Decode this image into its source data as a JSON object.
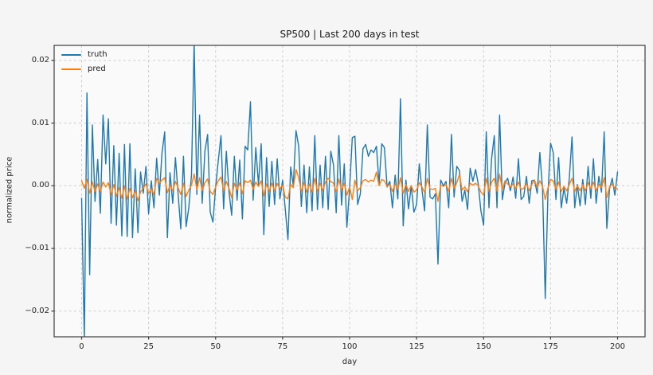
{
  "chart_data": {
    "type": "line",
    "title": "SP500 | Last 200 days in test",
    "xlabel": "day",
    "ylabel": "normalized price",
    "x_start": 0,
    "x_step": 1,
    "xlim": [
      -10.25,
      210.25
    ],
    "ylim": [
      -0.0241,
      0.0224
    ],
    "xticks": {
      "values": [
        0,
        25,
        50,
        75,
        100,
        125,
        150,
        175,
        200
      ],
      "labels": [
        "0",
        "25",
        "50",
        "75",
        "100",
        "125",
        "150",
        "175",
        "200"
      ]
    },
    "yticks": {
      "values": [
        0.02,
        0.01,
        0.0,
        -0.01,
        -0.02
      ],
      "labels": [
        "0.02",
        "0.01",
        "0.00",
        "−0.01",
        "−0.02"
      ]
    },
    "grid": {
      "visible": true,
      "style": "dashed",
      "color": "#cdcdcd"
    },
    "legend": {
      "position": "upper-left",
      "frame": false,
      "entries": [
        {
          "label": "truth",
          "color": "#1f77b4"
        },
        {
          "label": "pred",
          "color": "#ff7f0e"
        }
      ]
    },
    "colors": {
      "figure_bg": "#f5f5f6",
      "axes_bg": "#fafafa",
      "spine": "#3c3c3c",
      "tick_label": "#262626"
    },
    "series": [
      {
        "name": "truth",
        "color": "#1f77b4",
        "values": [
          -0.002,
          -0.0245,
          0.0148,
          -0.0142,
          0.0097,
          -0.0025,
          0.0042,
          -0.0044,
          0.0113,
          0.0035,
          0.0107,
          -0.006,
          0.0064,
          -0.0063,
          0.0052,
          -0.008,
          0.0066,
          -0.0081,
          0.0067,
          -0.0083,
          0.0027,
          -0.0075,
          0.0022,
          -0.0012,
          0.0031,
          -0.0045,
          0.0008,
          -0.0035,
          0.0044,
          -0.0015,
          0.0052,
          0.0086,
          -0.0083,
          0.0021,
          -0.0028,
          0.0045,
          -0.0012,
          -0.0069,
          0.0047,
          -0.0065,
          -0.0035,
          0.0018,
          0.023,
          -0.0014,
          0.0113,
          -0.0028,
          0.0055,
          0.0082,
          -0.0042,
          -0.0058,
          -0.0003,
          0.004,
          0.008,
          -0.0037,
          0.0055,
          -0.001,
          -0.0047,
          0.0047,
          -0.0023,
          0.0041,
          -0.0053,
          0.0063,
          0.0057,
          0.0134,
          -0.0023,
          0.0061,
          0.0002,
          0.0067,
          -0.0078,
          0.0045,
          -0.0033,
          0.0039,
          -0.003,
          0.0043,
          -0.0021,
          0.0009,
          -0.0037,
          -0.0086,
          0.003,
          0.0,
          0.0088,
          0.0063,
          -0.0033,
          0.0033,
          -0.0043,
          0.003,
          -0.004,
          0.008,
          -0.0038,
          0.0033,
          -0.0035,
          0.0047,
          -0.0038,
          0.0055,
          0.0033,
          -0.0043,
          0.008,
          -0.0031,
          0.0035,
          -0.0066,
          -0.0005,
          0.0077,
          0.0079,
          -0.003,
          -0.0013,
          0.0059,
          0.0066,
          0.0047,
          0.0057,
          0.0053,
          0.0063,
          0.0003,
          0.0067,
          0.0061,
          -0.0002,
          0.0007,
          -0.0035,
          0.0017,
          -0.0021,
          0.0139,
          -0.0064,
          0.0009,
          -0.0037,
          0.0,
          -0.0042,
          -0.003,
          0.0035,
          -0.0007,
          -0.004,
          0.0097,
          -0.0018,
          -0.0021,
          -0.0013,
          -0.0125,
          0.0009,
          0.0,
          0.0007,
          -0.0035,
          0.0082,
          -0.0018,
          0.0031,
          0.0024,
          -0.0025,
          -0.0007,
          -0.0038,
          0.0028,
          0.0007,
          0.0026,
          0.0003,
          -0.004,
          -0.0063,
          0.0086,
          -0.0035,
          0.0043,
          0.008,
          -0.0035,
          0.0113,
          -0.0022,
          0.0005,
          0.0012,
          -0.0008,
          0.0014,
          -0.002,
          0.0043,
          -0.0022,
          -0.0017,
          0.0015,
          -0.0028,
          0.0008,
          0.0009,
          -0.0012,
          0.0053,
          -0.0005,
          -0.018,
          -0.0015,
          0.0068,
          0.0053,
          -0.0022,
          0.0045,
          -0.0035,
          -0.0004,
          -0.0028,
          0.0012,
          0.0078,
          -0.0035,
          0.0002,
          -0.0032,
          0.001,
          -0.003,
          0.0031,
          -0.002,
          0.0043,
          -0.0028,
          0.0015,
          -0.001,
          0.0086,
          -0.0068,
          -0.0005,
          0.0012,
          -0.0015,
          0.0022
        ]
      },
      {
        "name": "pred",
        "color": "#ff7f0e",
        "values": [
          0.0008,
          -0.0004,
          0.001,
          -0.0012,
          0.0006,
          -0.0009,
          0.0003,
          -0.001,
          0.0006,
          -0.0002,
          0.0005,
          -0.0014,
          0.0002,
          -0.0017,
          -0.0003,
          -0.002,
          0.0,
          -0.0021,
          -0.0004,
          -0.0019,
          -0.0008,
          -0.0024,
          -0.001,
          -0.0004,
          0.0003,
          -0.0012,
          -0.0005,
          -0.0014,
          0.0012,
          0.0004,
          0.0009,
          0.0013,
          -0.0011,
          0.0001,
          -0.0008,
          0.0007,
          -0.0003,
          -0.0014,
          0.0004,
          -0.0017,
          -0.0007,
          0.0001,
          0.0019,
          -0.0006,
          0.0013,
          -0.0008,
          0.0005,
          0.0011,
          -0.0009,
          -0.0014,
          -0.0002,
          0.0008,
          0.0014,
          -0.0008,
          0.0007,
          -0.0004,
          -0.0019,
          0.0004,
          -0.0007,
          0.0005,
          -0.0013,
          0.0008,
          0.0005,
          0.0009,
          -0.0006,
          0.0006,
          -0.0001,
          0.0008,
          -0.0016,
          0.0003,
          -0.0009,
          0.0004,
          -0.0008,
          0.0004,
          -0.0005,
          0.0001,
          -0.0018,
          -0.0021,
          0.0002,
          -0.0003,
          0.0026,
          0.0013,
          -0.0009,
          0.0005,
          -0.001,
          0.0003,
          -0.001,
          0.0012,
          -0.0009,
          0.0004,
          -0.0008,
          0.0006,
          0.0012,
          0.0007,
          0.0004,
          -0.001,
          0.0011,
          -0.0007,
          0.0004,
          -0.0015,
          -0.0002,
          -0.0022,
          0.0009,
          -0.0008,
          -0.0003,
          0.0008,
          0.001,
          0.0006,
          0.0009,
          0.0007,
          0.0022,
          0.0,
          0.001,
          0.0008,
          -0.0001,
          0.0002,
          -0.0009,
          0.0003,
          -0.0006,
          0.0013,
          -0.0012,
          0.0002,
          -0.0009,
          0.0,
          -0.001,
          -0.0007,
          0.0005,
          -0.0002,
          -0.0011,
          0.0012,
          -0.0005,
          -0.0006,
          -0.0004,
          -0.0025,
          0.0001,
          -0.0001,
          0.0002,
          -0.0009,
          0.0012,
          -0.0005,
          0.0005,
          0.0018,
          -0.0007,
          -0.0002,
          -0.001,
          0.0004,
          0.0001,
          0.0004,
          0.0,
          -0.001,
          -0.0015,
          0.0012,
          -0.0009,
          0.0006,
          0.0012,
          -0.0009,
          0.0019,
          -0.0006,
          0.0008,
          0.0003,
          -0.0002,
          0.0003,
          -0.0005,
          0.0006,
          -0.0006,
          -0.0004,
          0.0003,
          -0.0008,
          0.0002,
          0.0009,
          -0.0003,
          0.0008,
          -0.0001,
          -0.0022,
          -0.0004,
          0.001,
          0.0008,
          -0.0006,
          0.0006,
          -0.0009,
          -0.0001,
          -0.0008,
          0.0002,
          0.0012,
          -0.0009,
          0.0,
          -0.0008,
          0.0002,
          -0.0008,
          0.0005,
          -0.0005,
          0.0006,
          -0.0008,
          0.0002,
          -0.0003,
          0.0013,
          -0.0019,
          -0.0002,
          0.0003,
          -0.0004,
          -0.0005
        ]
      }
    ]
  }
}
